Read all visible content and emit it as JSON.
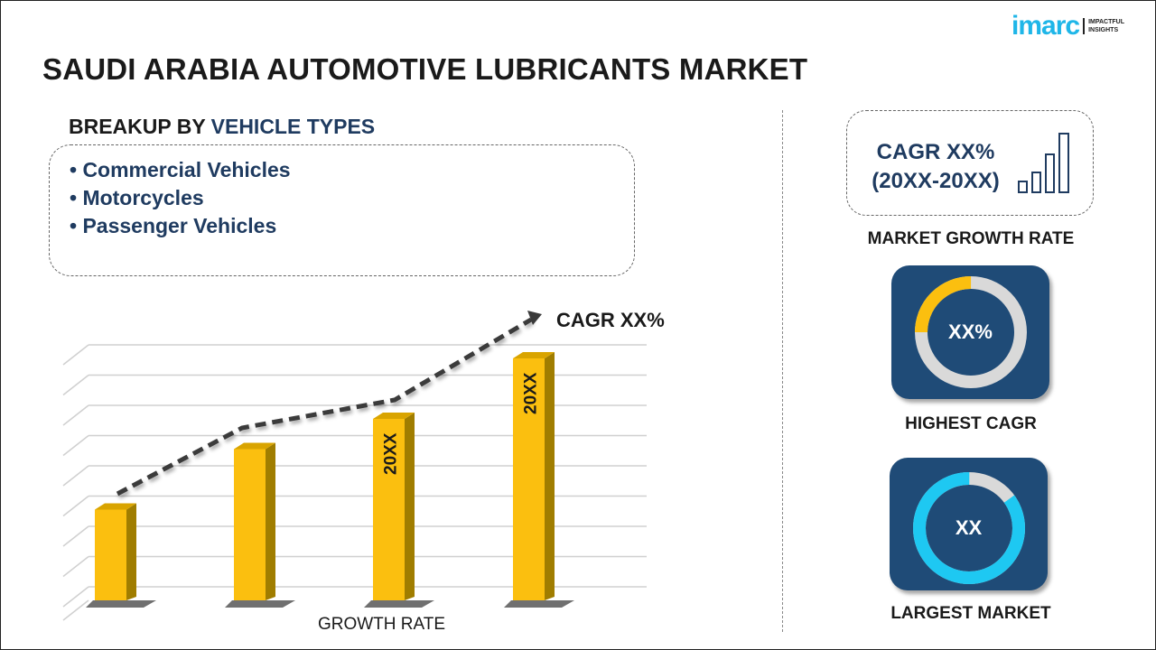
{
  "header": {
    "title": "SAUDI ARABIA AUTOMOTIVE LUBRICANTS MARKET",
    "logo_word": "imarc",
    "logo_tagline_1": "IMPACTFUL",
    "logo_tagline_2": "INSIGHTS"
  },
  "breakup": {
    "prefix": "BREAKUP BY ",
    "highlight": "VEHICLE TYPES",
    "items": [
      "• Commercial Vehicles",
      "• Motorcycles",
      "• Passenger Vehicles"
    ]
  },
  "right": {
    "cagr_line1": "CAGR XX%",
    "cagr_line2": "(20XX-20XX)",
    "growth_label": "MARKET GROWTH RATE",
    "highest": {
      "value": "XX%",
      "label": "HIGHEST CAGR",
      "fraction": 0.25,
      "color": "#fbbf0f"
    },
    "largest": {
      "value": "XX",
      "label": "LARGEST MARKET",
      "fraction": 0.85,
      "color": "#1ec8f2"
    },
    "icon": "bar-chart-growth-icon"
  },
  "colors": {
    "bar": "#fbbf0f",
    "bar_side": "#a07d00",
    "card": "#1f4b77",
    "donut_track": "#d9d9d9",
    "text_blue": "#1f3b60"
  },
  "chart_data": {
    "type": "bar",
    "values": [
      3,
      5,
      6,
      8
    ],
    "bar_labels": [
      "",
      "",
      "20XX",
      "20XX"
    ],
    "trend_annotation": "CAGR XX%",
    "xlabel": "GROWTH RATE",
    "ylabel": "",
    "grid": true,
    "ylim": [
      0,
      8.5
    ]
  }
}
